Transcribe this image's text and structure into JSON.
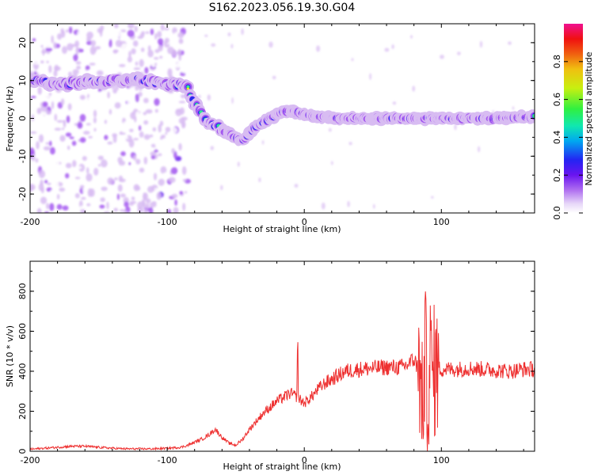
{
  "figure": {
    "title": "S162.2023.056.19.30.G04"
  },
  "colors": {
    "snr_line": "#ee3030",
    "colormap": [
      "#ffffff",
      "#d8bcf2",
      "#a558f0",
      "#6a1cf0",
      "#2a2af0",
      "#00b8f0",
      "#30e890",
      "#60f040",
      "#f0f010",
      "#f08820",
      "#f02020",
      "#f01890"
    ]
  },
  "chart_data": [
    {
      "type": "heatmap",
      "title": "S162.2023.056.19.30.G04",
      "xlabel": "Height of straight line (km)",
      "ylabel": "Frequency (Hz)",
      "xlim": [
        -200,
        168
      ],
      "ylim": [
        -25,
        25
      ],
      "x_ticks": [
        -200,
        -100,
        0,
        100
      ],
      "y_ticks": [
        -20,
        -10,
        0,
        10,
        20
      ],
      "colorbar": {
        "label": "Normalized spectral amplitude",
        "range": [
          0,
          1
        ],
        "ticks": [
          0.0,
          0.2,
          0.4,
          0.6,
          0.8
        ]
      },
      "ridge": {
        "x": [
          -200,
          -180,
          -160,
          -140,
          -120,
          -100,
          -90,
          -85,
          -80,
          -75,
          -70,
          -65,
          -60,
          -55,
          -50,
          -45,
          -40,
          -35,
          -30,
          -25,
          -20,
          -15,
          -10,
          0,
          10,
          20,
          40,
          60,
          80,
          100,
          120,
          140,
          168
        ],
        "y": [
          10,
          9,
          9.5,
          10,
          10,
          9,
          9,
          8,
          4,
          1,
          -1,
          -2,
          -3,
          -4,
          -5,
          -6,
          -4,
          -2,
          -1,
          0,
          1,
          2,
          2,
          1,
          0.5,
          0,
          0,
          0,
          0,
          0,
          0,
          0,
          0.5
        ]
      }
    },
    {
      "type": "line",
      "xlabel": "Height of straight line (km)",
      "ylabel": "SNR (10 * v/v)",
      "xlim": [
        -200,
        168
      ],
      "ylim": [
        0,
        950
      ],
      "x_ticks": [
        -200,
        -100,
        0,
        100
      ],
      "y_ticks": [
        0,
        200,
        400,
        600,
        800
      ],
      "series": [
        {
          "x": [
            -200,
            -190,
            -180,
            -170,
            -160,
            -150,
            -140,
            -130,
            -120,
            -110,
            -100,
            -90,
            -85,
            -80,
            -75,
            -70,
            -65,
            -60,
            -55,
            -50,
            -45,
            -40,
            -35,
            -30,
            -25,
            -20,
            -15,
            -10,
            -5,
            0,
            5,
            10,
            15,
            20,
            25,
            30,
            40,
            50,
            60,
            70,
            75,
            80,
            84,
            86,
            88,
            90,
            92,
            94,
            96,
            100,
            110,
            120,
            130,
            140,
            150,
            160,
            168
          ],
          "y": [
            10,
            15,
            20,
            25,
            25,
            20,
            15,
            12,
            12,
            12,
            15,
            20,
            30,
            45,
            60,
            80,
            110,
            70,
            40,
            30,
            60,
            110,
            150,
            190,
            220,
            250,
            270,
            290,
            270,
            240,
            270,
            310,
            340,
            360,
            380,
            400,
            410,
            415,
            420,
            420,
            430,
            460,
            400,
            200,
            500,
            300,
            450,
            380,
            420,
            410,
            410,
            415,
            410,
            405,
            400,
            410,
            410
          ]
        }
      ]
    }
  ]
}
